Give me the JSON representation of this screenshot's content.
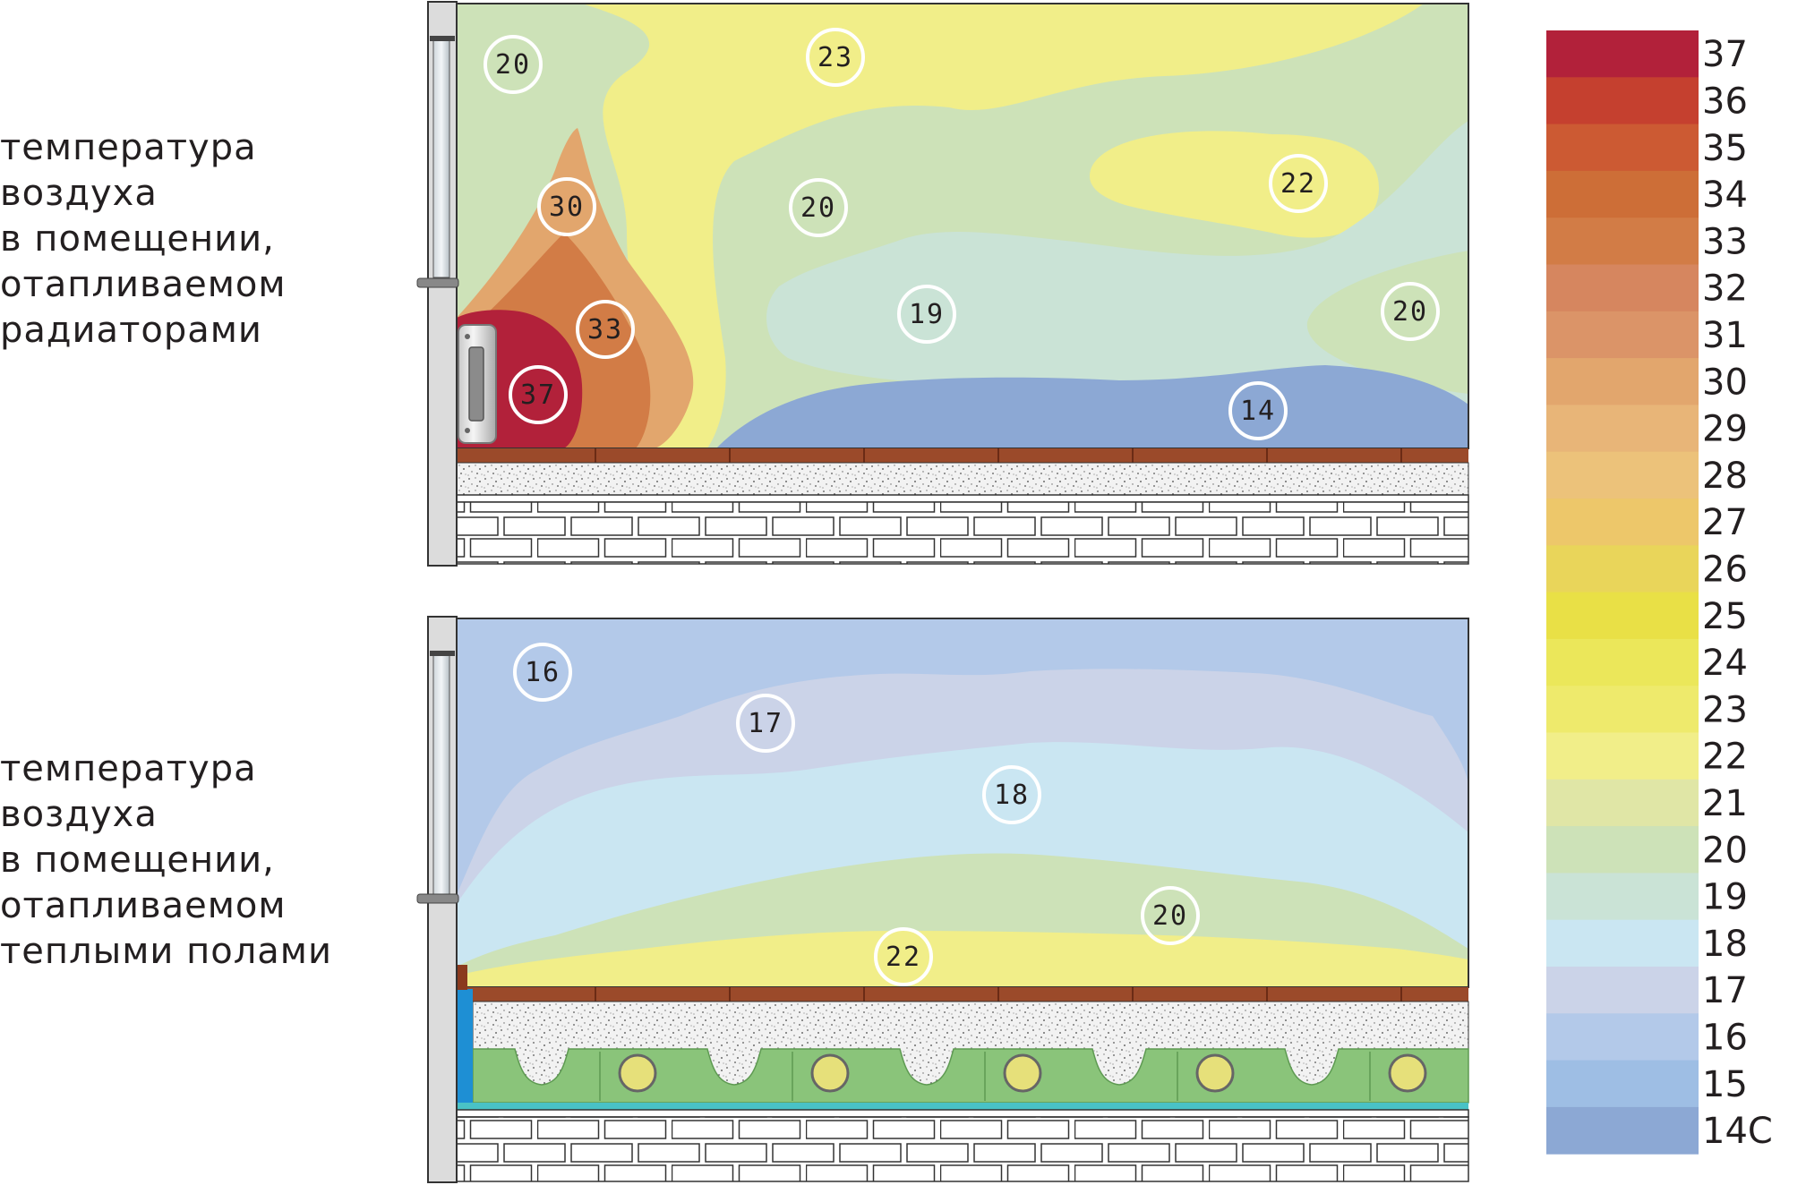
{
  "captions": {
    "radiators": [
      "температура",
      "воздуха",
      "в помещении,",
      "отапливаемом",
      "радиаторами"
    ],
    "floor": [
      "температура",
      "воздуха",
      "в помещении,",
      "отапливаемом",
      "теплыми полами"
    ]
  },
  "scale": [
    {
      "label": "37",
      "color": "#b2213a"
    },
    {
      "label": "36",
      "color": "#c5402f"
    },
    {
      "label": "35",
      "color": "#cc5a33"
    },
    {
      "label": "34",
      "color": "#cd6e37"
    },
    {
      "label": "33",
      "color": "#d27c46"
    },
    {
      "label": "32",
      "color": "#d6865f"
    },
    {
      "label": "31",
      "color": "#db9468"
    },
    {
      "label": "30",
      "color": "#e2a66d"
    },
    {
      "label": "29",
      "color": "#e8b578"
    },
    {
      "label": "28",
      "color": "#ecc27a"
    },
    {
      "label": "27",
      "color": "#edc76a"
    },
    {
      "label": "26",
      "color": "#e9d55a"
    },
    {
      "label": "25",
      "color": "#e9e046"
    },
    {
      "label": "24",
      "color": "#ebe75a"
    },
    {
      "label": "23",
      "color": "#eeea6c"
    },
    {
      "label": "22",
      "color": "#f1ee89"
    },
    {
      "label": "21",
      "color": "#e0e6a6"
    },
    {
      "label": "20",
      "color": "#cde2b8"
    },
    {
      "label": "19",
      "color": "#cae3d6"
    },
    {
      "label": "18",
      "color": "#cae6f2"
    },
    {
      "label": "17",
      "color": "#cbd3e8"
    },
    {
      "label": "16",
      "color": "#b3c9e9"
    },
    {
      "label": "15",
      "color": "#9ebee4"
    },
    {
      "label": "14C",
      "color": "#8ca8d4"
    }
  ],
  "radiator_room": {
    "labels": [
      "20",
      "23",
      "30",
      "20",
      "22",
      "33",
      "19",
      "20",
      "37",
      "14"
    ]
  },
  "floor_room": {
    "labels": [
      "16",
      "17",
      "18",
      "20",
      "22"
    ]
  }
}
